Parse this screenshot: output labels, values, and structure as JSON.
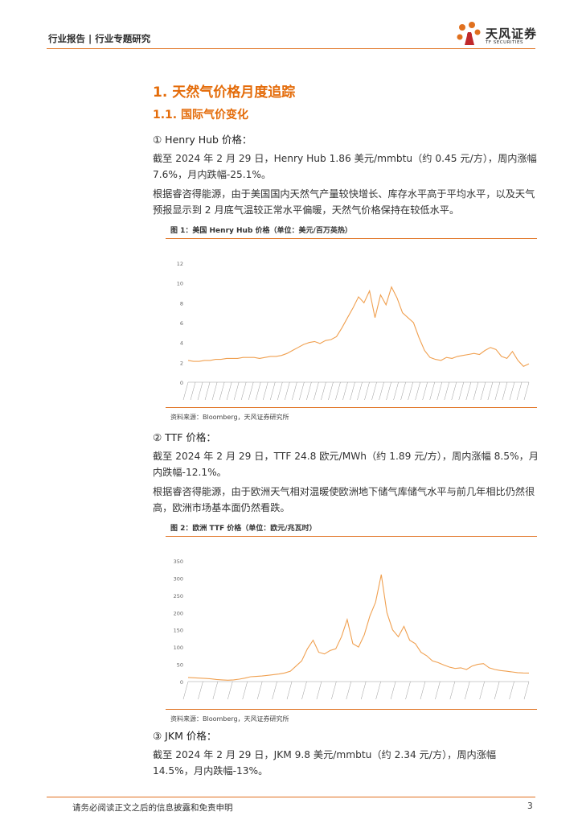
{
  "header": {
    "text": "行业报告 | 行业专题研究"
  },
  "logo": {
    "name": "天风证券",
    "en": "TF SECURITIES"
  },
  "section1": {
    "title": "1. 天然气价格月度追踪"
  },
  "section11": {
    "title": "1.1. 国际气价变化"
  },
  "henry": {
    "heading": "① Henry Hub 价格：",
    "p1": "截至 2024 年 2 月 29 日，Henry Hub 1.86 美元/mmbtu（约 0.45 元/方），周内涨幅 7.6%，月内跌幅-25.1%。",
    "p2": "根据睿咨得能源，由于美国国内天然气产量较快增长、库存水平高于平均水平，以及天气预报显示到 2 月底气温较正常水平偏暖，天然气价格保持在较低水平。"
  },
  "fig1": {
    "title": "图 1：美国 Henry Hub 价格（单位：美元/百万英热）",
    "source": "资料来源：Bloomberg，天风证券研究所"
  },
  "ttf": {
    "heading": "② TTF 价格：",
    "p1": "截至 2024 年 2 月 29 日，TTF 24.8 欧元/MWh（约 1.89 元/方），周内涨幅 8.5%，月内跌幅-12.1%。",
    "p2": "根据睿咨得能源，由于欧洲天气相对温暖使欧洲地下储气库储气水平与前几年相比仍然很高，欧洲市场基本面仍然看跌。"
  },
  "fig2": {
    "title": "图 2：欧洲 TTF 价格（单位：欧元/兆瓦时）",
    "source": "资料来源：Bloomberg，天风证券研究所"
  },
  "jkm": {
    "heading": "③ JKM 价格：",
    "p1": "截至 2024 年 2 月 29 日，JKM 9.8 美元/mmbtu（约 2.34 元/方），周内涨幅 14.5%，月内跌幅-13%。"
  },
  "footer": {
    "text": "请务必阅读正文之后的信息披露和免责申明",
    "page": "3"
  },
  "colors": {
    "accent": "#e46c0a",
    "line": "#f0a050"
  },
  "chart_data": [
    {
      "type": "line",
      "title": "图 1：美国 Henry Hub 价格（单位：美元/百万英热）",
      "ylim": [
        0,
        12
      ],
      "yticks": [
        0,
        2,
        4,
        6,
        8,
        10,
        12
      ],
      "x_range": [
        "2020",
        "2024"
      ],
      "series": [
        {
          "values": [
            2.2,
            2.1,
            2.1,
            2.2,
            2.2,
            2.3,
            2.3,
            2.4,
            2.4,
            2.4,
            2.5,
            2.5,
            2.5,
            2.4,
            2.5,
            2.6,
            2.6,
            2.7,
            2.9,
            3.2,
            3.5,
            3.8,
            4.0,
            4.1,
            3.9,
            4.2,
            4.3,
            4.6,
            5.5,
            6.5,
            7.5,
            8.6,
            8.0,
            9.2,
            6.5,
            8.8,
            7.8,
            9.6,
            8.5,
            7.0,
            6.5,
            6.0,
            4.5,
            3.2,
            2.5,
            2.3,
            2.2,
            2.5,
            2.4,
            2.6,
            2.7,
            2.8,
            2.9,
            2.8,
            3.2,
            3.5,
            3.3,
            2.6,
            2.4,
            3.1,
            2.2,
            1.6,
            1.86
          ]
        }
      ]
    },
    {
      "type": "line",
      "title": "图 2：欧洲 TTF 价格（单位：欧元/兆瓦时）",
      "ylim": [
        0,
        350
      ],
      "yticks": [
        0,
        50,
        100,
        150,
        200,
        250,
        300,
        350
      ],
      "x_range": [
        "2019",
        "2024"
      ],
      "series": [
        {
          "values": [
            12,
            11,
            10,
            9,
            8,
            6,
            5,
            4,
            5,
            7,
            10,
            14,
            15,
            16,
            18,
            20,
            22,
            25,
            30,
            45,
            60,
            95,
            120,
            85,
            80,
            90,
            95,
            130,
            180,
            110,
            100,
            135,
            190,
            230,
            310,
            200,
            150,
            130,
            160,
            120,
            110,
            85,
            75,
            60,
            55,
            48,
            42,
            38,
            40,
            35,
            45,
            50,
            52,
            40,
            35,
            32,
            30,
            28,
            26,
            25,
            24.8
          ]
        }
      ]
    }
  ]
}
